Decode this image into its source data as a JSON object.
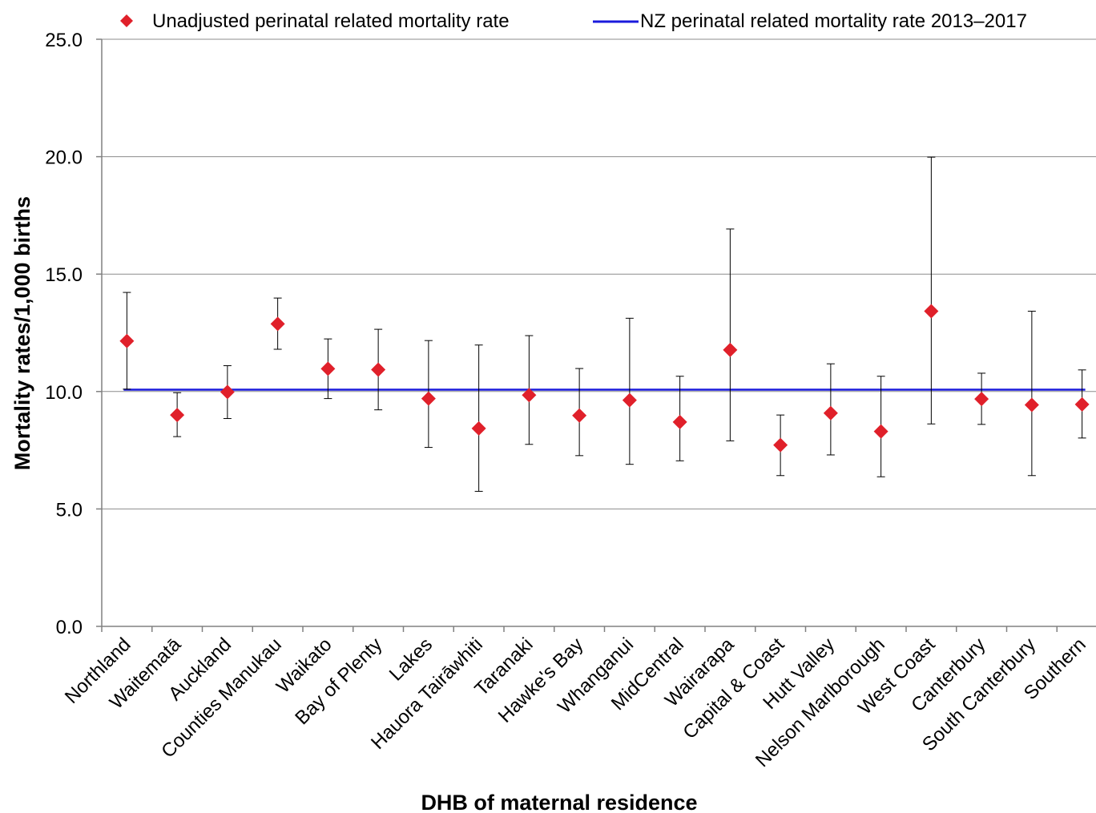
{
  "chart_data": {
    "type": "scatter",
    "xlabel": "DHB of maternal residence",
    "ylabel": "Mortality rates/1,000 births",
    "ylim": [
      0,
      25
    ],
    "yticks": [
      "0.0",
      "5.0",
      "10.0",
      "15.0",
      "20.0",
      "25.0"
    ],
    "grid": "horizontal",
    "legend_position": "top",
    "categories": [
      "Northland",
      "Waitematā",
      "Auckland",
      "Counties Manukau",
      "Waikato",
      "Bay of Plenty",
      "Lakes",
      "Hauora Tairāwhiti",
      "Taranaki",
      "Hawke's Bay",
      "Whanganui",
      "MidCentral",
      "Wairarapa",
      "Capital & Coast",
      "Hutt Valley",
      "Nelson Marlborough",
      "West Coast",
      "Canterbury",
      "South Canterbury",
      "Southern"
    ],
    "series": [
      {
        "name": "Unadjusted perinatal related mortality rate",
        "marker": "diamond",
        "color": "#e0202a",
        "values": [
          12.15,
          9.0,
          9.98,
          12.88,
          10.97,
          10.93,
          9.7,
          8.43,
          9.85,
          8.98,
          9.63,
          8.7,
          11.77,
          7.72,
          9.08,
          8.3,
          13.42,
          9.68,
          9.43,
          9.45
        ],
        "ci_lower": [
          10.1,
          8.08,
          8.85,
          11.8,
          9.7,
          9.22,
          7.62,
          5.75,
          7.75,
          7.27,
          6.9,
          7.05,
          7.9,
          6.42,
          7.3,
          6.37,
          8.62,
          8.6,
          6.42,
          8.02
        ],
        "ci_upper": [
          14.22,
          9.95,
          11.1,
          13.98,
          12.24,
          12.65,
          12.17,
          11.98,
          12.38,
          10.98,
          13.12,
          10.65,
          16.92,
          9.0,
          11.18,
          10.65,
          19.98,
          10.78,
          13.42,
          10.92
        ]
      },
      {
        "name": "NZ perinatal related mortality rate 2013–2017",
        "type": "hline",
        "color": "#1a1adc",
        "value": 10.08
      }
    ]
  }
}
